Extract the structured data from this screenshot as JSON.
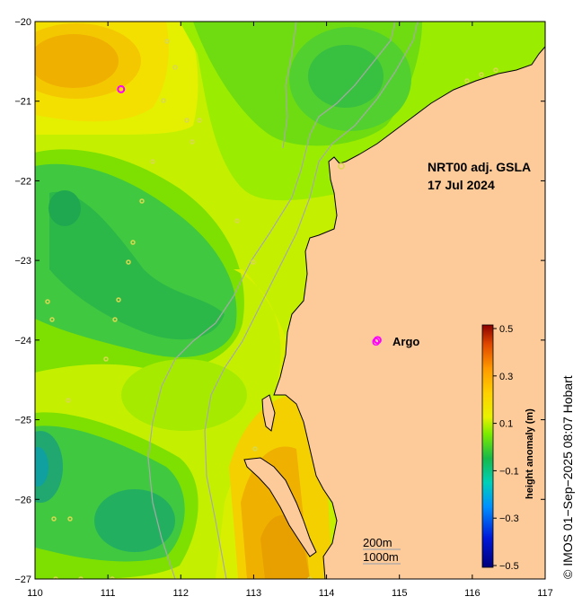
{
  "map": {
    "title_line1": "NRT00 adj. GSLA",
    "title_line2": "17 Jul 2024",
    "legend_marker": "O",
    "legend_label": "Argo",
    "contour_label_1": "200m",
    "contour_label_2": "1000m",
    "colorbar_label": "height anomaly (m)",
    "credit": "© IMOS 01−Sep−2025 08:07 Hobart",
    "land_color": "#fdca9a",
    "argo_color": "#ff00ff"
  },
  "axes": {
    "x_ticks": [
      "110",
      "111",
      "112",
      "113",
      "114",
      "115",
      "116",
      "117"
    ],
    "y_ticks": [
      "−20",
      "−21",
      "−22",
      "−23",
      "−24",
      "−25",
      "−26",
      "−27"
    ],
    "xlim": [
      110,
      117
    ],
    "ylim": [
      -27,
      -20
    ]
  },
  "colorbar": {
    "ticks": [
      "0.5",
      "0.3",
      "0.1",
      "−0.1",
      "−0.3",
      "−0.5"
    ],
    "range": [
      -0.5,
      0.5
    ]
  },
  "argo_floats": [
    {
      "lon": 111.18,
      "lat": -20.85
    },
    {
      "lon": 114.7,
      "lat": -24.0
    }
  ]
}
